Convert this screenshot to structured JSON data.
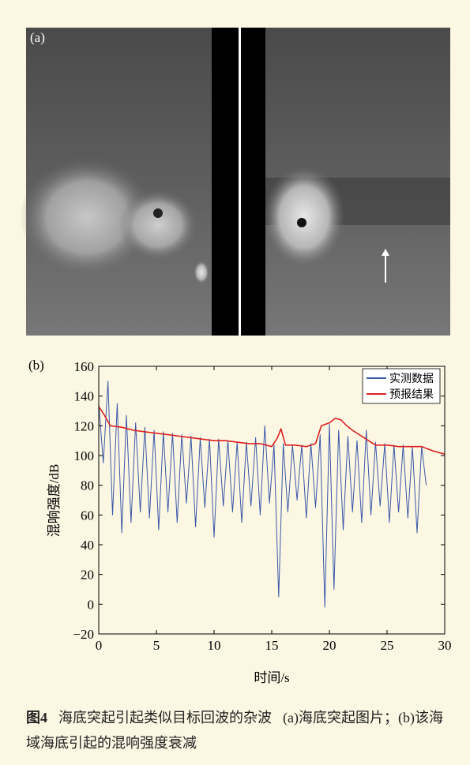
{
  "panel_a": {
    "label": "(a)"
  },
  "chart_data": {
    "type": "line",
    "panel_label": "(b)",
    "xlabel": "时间/s",
    "ylabel": "混响强度/dB",
    "xlim": [
      0,
      30
    ],
    "ylim": [
      -20,
      160
    ],
    "xticks": [
      0,
      5,
      10,
      15,
      20,
      25,
      30
    ],
    "yticks": [
      {
        "value": -20,
        "label": "−20"
      },
      0,
      20,
      40,
      60,
      80,
      100,
      120,
      140,
      160
    ],
    "legend": "upper right",
    "series": [
      {
        "name": "实测数据",
        "color": "#3a57a8",
        "x": [
          0,
          0.4,
          0.8,
          1.2,
          1.6,
          2,
          2.4,
          2.8,
          3.2,
          3.6,
          4,
          4.4,
          4.8,
          5.2,
          5.6,
          6,
          6.4,
          6.8,
          7.2,
          7.6,
          8,
          8.4,
          8.8,
          9.2,
          9.6,
          10,
          10.4,
          10.8,
          11.2,
          11.6,
          12,
          12.4,
          12.8,
          13.2,
          13.6,
          14,
          14.4,
          14.8,
          15.2,
          15.6,
          16,
          16.4,
          16.8,
          17.2,
          17.6,
          18,
          18.4,
          18.8,
          19.2,
          19.6,
          20,
          20.4,
          20.8,
          21.2,
          21.6,
          22,
          22.4,
          22.8,
          23.2,
          23.6,
          24,
          24.4,
          24.8,
          25.2,
          25.6,
          26,
          26.4,
          26.8,
          27.2,
          27.6,
          28,
          28.4
        ],
        "values": [
          135,
          95,
          150,
          60,
          135,
          48,
          127,
          55,
          122,
          62,
          119,
          58,
          117,
          50,
          116,
          62,
          115,
          55,
          114,
          68,
          113,
          52,
          112,
          65,
          111,
          45,
          111,
          66,
          110,
          62,
          109,
          55,
          109,
          66,
          112,
          60,
          120,
          68,
          107,
          5,
          108,
          62,
          107,
          70,
          107,
          58,
          108,
          65,
          114,
          -2,
          121,
          10,
          117,
          50,
          113,
          62,
          110,
          55,
          117,
          60,
          109,
          66,
          108,
          55,
          107,
          62,
          107,
          58,
          106,
          48,
          106,
          80
        ]
      },
      {
        "name": "预报结果",
        "color": "#e02020",
        "x": [
          0,
          0.5,
          1,
          2,
          3,
          4,
          5,
          6,
          7,
          8,
          9,
          10,
          11,
          12,
          13,
          14,
          15,
          15.5,
          15.8,
          16.2,
          17,
          18,
          18.8,
          19.3,
          20,
          20.5,
          21,
          21.5,
          22,
          23,
          24,
          25,
          26,
          27,
          28,
          29,
          30
        ],
        "values": [
          133,
          127,
          120,
          119,
          117,
          116,
          115,
          114,
          113,
          112,
          111,
          110,
          110,
          109,
          108,
          108,
          106,
          112,
          118,
          107,
          107,
          106,
          108,
          120,
          122,
          125,
          124,
          120,
          117,
          112,
          107,
          107,
          106,
          106,
          106,
          103,
          101
        ]
      }
    ]
  },
  "caption": {
    "figure_number": "图4",
    "title": "海底突起引起类似目标回波的杂波",
    "text": "(a)海底突起图片；(b)该海域海底引起的混响强度衰减"
  }
}
